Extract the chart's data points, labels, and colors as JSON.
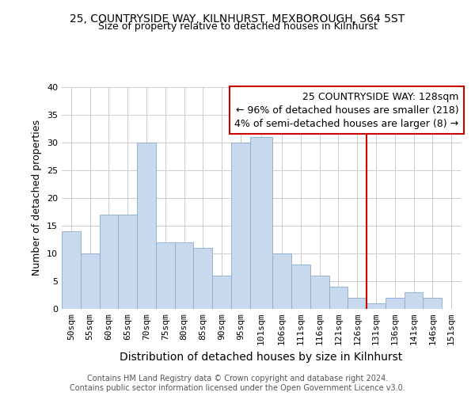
{
  "title": "25, COUNTRYSIDE WAY, KILNHURST, MEXBOROUGH, S64 5ST",
  "subtitle": "Size of property relative to detached houses in Kilnhurst",
  "xlabel": "Distribution of detached houses by size in Kilnhurst",
  "ylabel": "Number of detached properties",
  "categories": [
    "50sqm",
    "55sqm",
    "60sqm",
    "65sqm",
    "70sqm",
    "75sqm",
    "80sqm",
    "85sqm",
    "90sqm",
    "95sqm",
    "101sqm",
    "106sqm",
    "111sqm",
    "116sqm",
    "121sqm",
    "126sqm",
    "131sqm",
    "136sqm",
    "141sqm",
    "146sqm",
    "151sqm"
  ],
  "values": [
    14,
    10,
    17,
    17,
    30,
    12,
    12,
    11,
    6,
    30,
    31,
    10,
    8,
    6,
    4,
    2,
    1,
    2,
    3,
    2,
    0
  ],
  "bar_color": "#c8d9ee",
  "bar_edge_color": "#88aad0",
  "annotation_box_text": "25 COUNTRYSIDE WAY: 128sqm\n← 96% of detached houses are smaller (218)\n4% of semi-detached houses are larger (8) →",
  "annotation_box_color": "#ffffff",
  "annotation_box_edge_color": "#cc0000",
  "vline_color": "#cc0000",
  "vline_x": 128.5,
  "ylim": [
    0,
    40
  ],
  "yticks": [
    0,
    5,
    10,
    15,
    20,
    25,
    30,
    35,
    40
  ],
  "footer": "Contains HM Land Registry data © Crown copyright and database right 2024.\nContains public sector information licensed under the Open Government Licence v3.0.",
  "background_color": "#ffffff",
  "grid_color": "#cccccc",
  "title_fontsize": 10,
  "subtitle_fontsize": 9,
  "xlabel_fontsize": 10,
  "ylabel_fontsize": 9,
  "tick_fontsize": 8,
  "footer_fontsize": 7,
  "annotation_fontsize": 9,
  "bin_edges": [
    47.5,
    52.5,
    57.5,
    62.5,
    67.5,
    72.5,
    77.5,
    82.5,
    87.5,
    92.5,
    97.5,
    103.5,
    108.5,
    113.5,
    118.5,
    123.5,
    128.5,
    133.5,
    138.5,
    143.5,
    148.5,
    153.5
  ]
}
